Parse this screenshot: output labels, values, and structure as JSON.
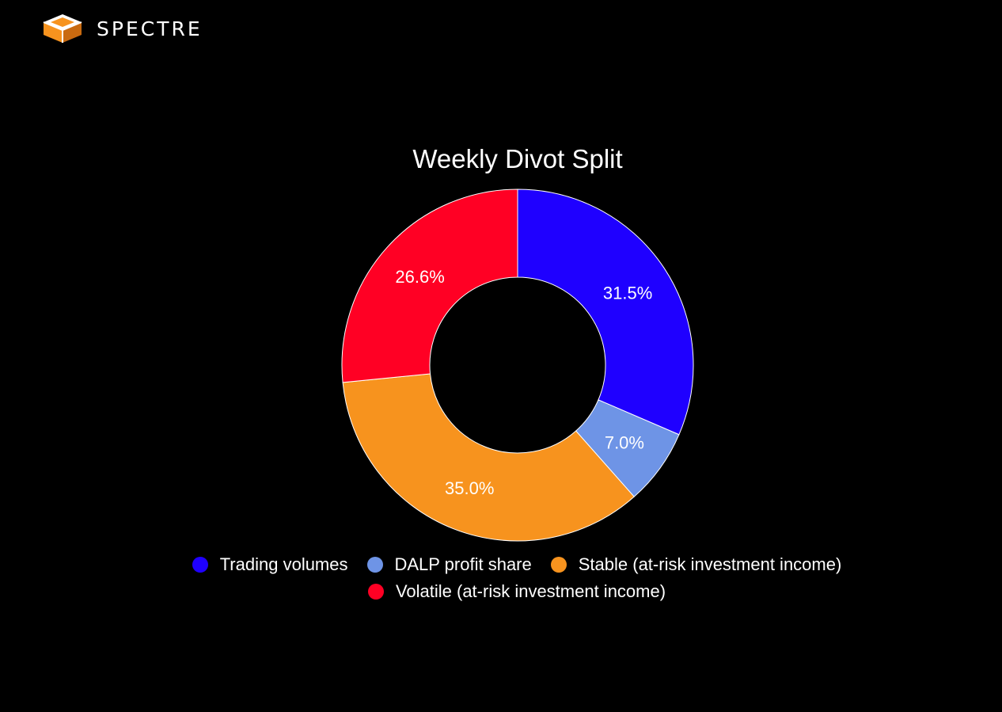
{
  "brand": {
    "name": "SPECTRE",
    "icon": "cube-icon",
    "icon_color": "#F7931E"
  },
  "chart_data": {
    "type": "pie",
    "title": "Weekly Divot Split",
    "donut": true,
    "categories": [
      "Trading volumes",
      "DALP profit share",
      "Stable (at-risk investment income)",
      "Volatile (at-risk investment income)"
    ],
    "values": [
      31.5,
      7.0,
      35.0,
      26.6
    ],
    "labels": [
      "31.5%",
      "7.0%",
      "35.0%",
      "26.6%"
    ],
    "colors": [
      "#1F00FF",
      "#6E94E6",
      "#F7931E",
      "#FF0024"
    ],
    "legend": "bottom"
  }
}
